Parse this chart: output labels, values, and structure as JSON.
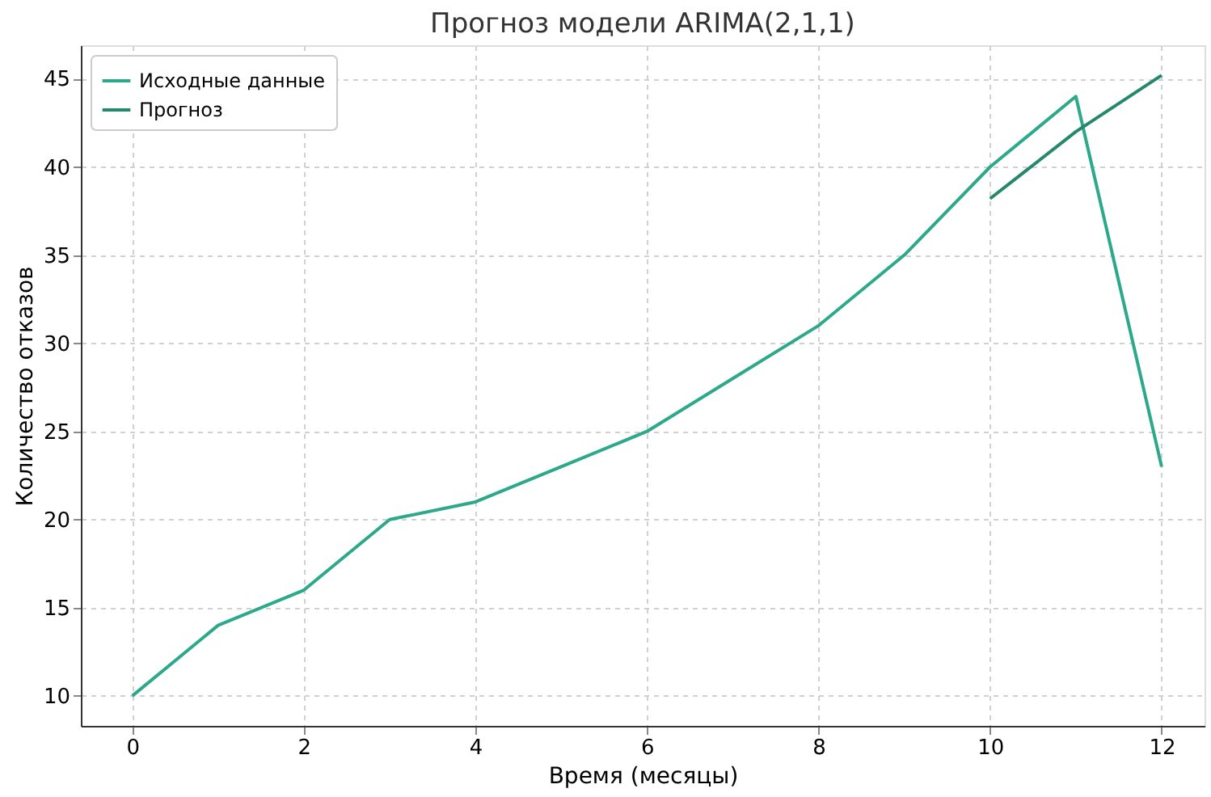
{
  "chart_data": {
    "type": "line",
    "title": "Прогноз модели ARIMA(2,1,1)",
    "xlabel": "Время (месяцы)",
    "ylabel": "Количество отказов",
    "series": [
      {
        "name": "Исходные данные",
        "color": "#2ca88a",
        "x": [
          0,
          1,
          2,
          3,
          4,
          5,
          6,
          7,
          8,
          9,
          10,
          11,
          12
        ],
        "values": [
          10,
          14,
          16,
          20,
          21,
          23,
          25,
          28,
          31,
          35,
          40,
          44,
          23
        ]
      },
      {
        "name": "Прогноз",
        "color": "#25876c",
        "x": [
          10,
          11,
          12
        ],
        "values": [
          38.2,
          42,
          45.2
        ]
      }
    ],
    "xlim": [
      -0.6,
      12.5
    ],
    "ylim": [
      8.3,
      46.9
    ],
    "xticks": [
      0,
      2,
      4,
      6,
      8,
      10,
      12
    ],
    "yticks": [
      10,
      15,
      20,
      25,
      30,
      35,
      40,
      45
    ],
    "grid": true,
    "legend": "top left",
    "marker": "none",
    "line_style": "solid"
  }
}
